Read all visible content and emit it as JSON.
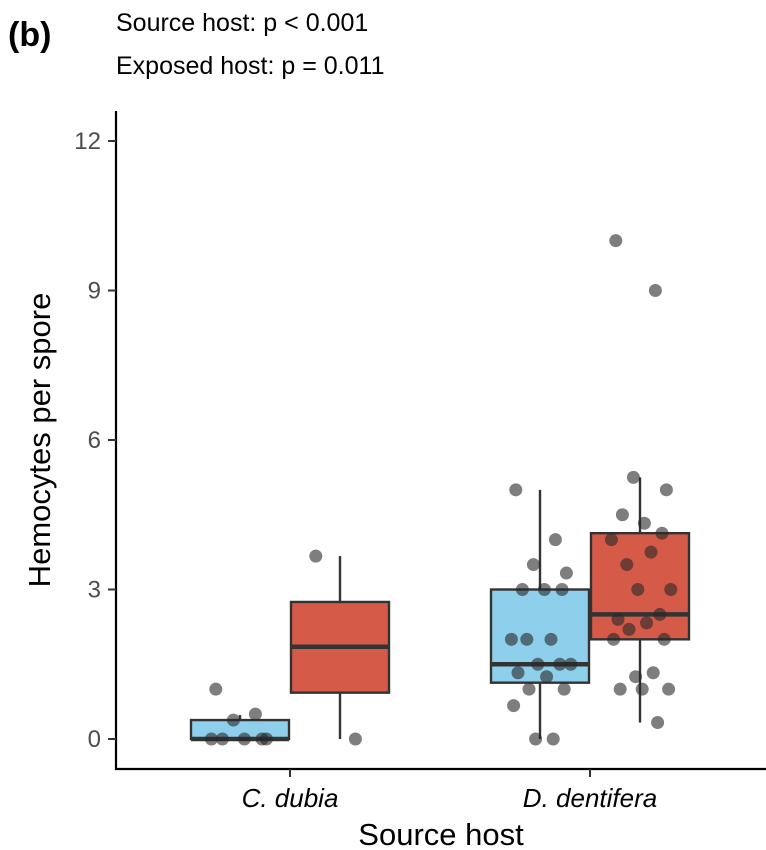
{
  "panel_label": "(b)",
  "stats": [
    "Source host: p < 0.001",
    "Exposed host: p = 0.011"
  ],
  "chart_data": {
    "type": "box",
    "title": "",
    "xlabel": "Source host",
    "ylabel": "Hemocytes per spore",
    "ylim": [
      -0.6,
      12.6
    ],
    "yticks": [
      0,
      3,
      6,
      9,
      12
    ],
    "ytick_labels": [
      "0",
      "3",
      "6",
      "9",
      "12"
    ],
    "categories": [
      "C. dubia",
      "D. dentifera"
    ],
    "grid": false,
    "legend": "none",
    "groups": [
      {
        "category": "C. dubia",
        "color": "#8ecfeb",
        "box": {
          "q1": 0.0,
          "median": 0.0,
          "q3": 0.38,
          "whisker_low": 0.0,
          "whisker_high": 0.48
        },
        "points": [
          1.0,
          0.5,
          0.38,
          0.0,
          0.0,
          0.0,
          0.0,
          0.0
        ]
      },
      {
        "category": "C. dubia",
        "color": "#d55b48",
        "box": {
          "q1": 0.93,
          "median": 1.85,
          "q3": 2.75,
          "whisker_low": 0.0,
          "whisker_high": 3.67
        },
        "points": [
          3.67,
          0.0
        ]
      },
      {
        "category": "D. dentifera",
        "color": "#8ecfeb",
        "box": {
          "q1": 1.13,
          "median": 1.5,
          "q3": 3.0,
          "whisker_low": 0.0,
          "whisker_high": 5.0
        },
        "points": [
          5.0,
          4.0,
          3.5,
          3.33,
          3.0,
          3.0,
          3.0,
          2.0,
          2.0,
          2.0,
          1.5,
          1.5,
          1.5,
          1.33,
          1.25,
          1.0,
          1.0,
          0.67,
          0.0,
          0.0
        ]
      },
      {
        "category": "D. dentifera",
        "color": "#d55b48",
        "box": {
          "q1": 2.0,
          "median": 2.5,
          "q3": 4.13,
          "whisker_low": 0.33,
          "whisker_high": 5.25
        },
        "points": [
          10.0,
          9.0,
          5.25,
          5.0,
          4.5,
          4.33,
          4.13,
          4.0,
          3.75,
          3.5,
          3.0,
          3.0,
          2.5,
          2.4,
          2.33,
          2.2,
          2.0,
          2.0,
          1.33,
          1.25,
          1.0,
          1.0,
          1.0,
          0.33
        ]
      }
    ]
  }
}
